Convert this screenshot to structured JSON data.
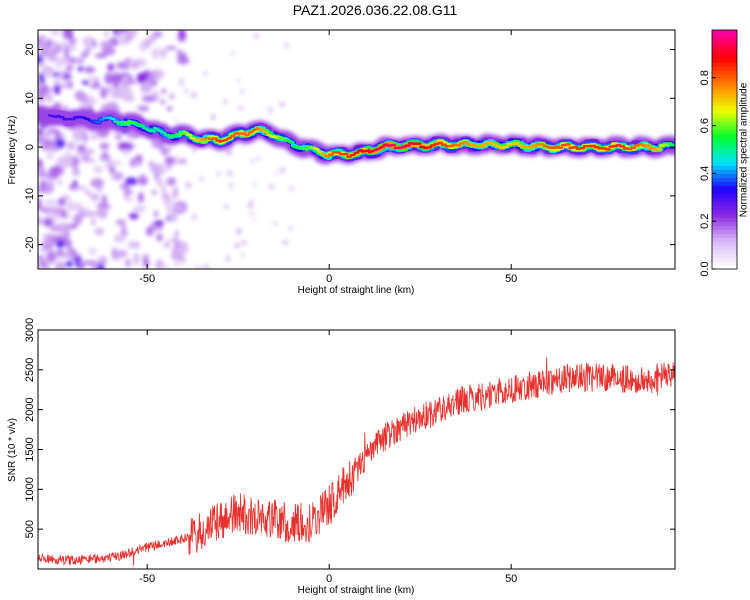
{
  "figure_title": "PAZ1.2026.036.22.08.G11",
  "colors": {
    "snr_line": "#e8302c",
    "frame": "#000000",
    "colormap": [
      "#ffffff",
      "#d9b8f5",
      "#8b2be2",
      "#2000ff",
      "#00e5ff",
      "#00ff30",
      "#f0ff00",
      "#ff8000",
      "#ff0000",
      "#ff00a0"
    ]
  },
  "chart_data": [
    {
      "type": "heatmap",
      "xlabel": "Height of straight line (km)",
      "ylabel": "Frequency (Hz)",
      "xlim": [
        -80,
        95
      ],
      "ylim": [
        -25,
        24
      ],
      "xticks": [
        -50,
        0,
        50
      ],
      "yticks": [
        -20,
        -10,
        0,
        10,
        20
      ],
      "grid": false,
      "colorbar": {
        "label": "Normalized spectral amplitude",
        "range": [
          0,
          1
        ],
        "ticks": [
          "0.0",
          "0.2",
          "0.4",
          "0.6",
          "0.8"
        ]
      },
      "ridge": {
        "x": [
          -80,
          -75,
          -70,
          -65,
          -60,
          -55,
          -50,
          -45,
          -40,
          -35,
          -30,
          -25,
          -20,
          -15,
          -10,
          -5,
          0,
          5,
          10,
          15,
          20,
          30,
          40,
          50,
          60,
          70,
          80,
          90,
          95
        ],
        "freq": [
          7,
          6,
          6,
          5.5,
          5.5,
          5,
          4,
          2.5,
          2.5,
          1.5,
          1.5,
          2.5,
          3.5,
          2.5,
          0.5,
          -0.5,
          -1.5,
          -1.5,
          -1,
          0,
          0.2,
          0.5,
          0.5,
          0.5,
          0,
          0,
          0,
          0,
          0.2
        ],
        "amplitude": [
          0.25,
          0.3,
          0.3,
          0.35,
          0.45,
          0.6,
          0.5,
          0.5,
          0.6,
          0.75,
          0.85,
          0.8,
          0.8,
          0.65,
          0.55,
          0.6,
          0.8,
          0.85,
          0.9,
          0.95,
          0.95,
          0.85,
          0.75,
          0.7,
          0.8,
          0.85,
          0.85,
          0.75,
          0.5
        ]
      }
    },
    {
      "type": "line",
      "xlabel": "Height of straight line (km)",
      "ylabel": "SNR (10 * v/v)",
      "xlim": [
        -80,
        95
      ],
      "ylim": [
        0,
        3000
      ],
      "xticks": [
        -50,
        0,
        50
      ],
      "yticks": [
        500,
        1000,
        1500,
        2000,
        2500,
        3000
      ],
      "grid": false,
      "series": [
        {
          "x": [
            -80,
            -75,
            -70,
            -65,
            -60,
            -55,
            -50,
            -45,
            -40,
            -35,
            -30,
            -25,
            -20,
            -15,
            -10,
            -5,
            0,
            5,
            10,
            15,
            20,
            25,
            30,
            35,
            40,
            45,
            50,
            55,
            60,
            65,
            70,
            75,
            80,
            85,
            90,
            95
          ],
          "values": [
            130,
            120,
            110,
            130,
            140,
            200,
            280,
            320,
            380,
            450,
            600,
            700,
            650,
            620,
            550,
            600,
            800,
            1100,
            1400,
            1650,
            1800,
            1900,
            2000,
            2100,
            2150,
            2200,
            2250,
            2300,
            2350,
            2400,
            2400,
            2400,
            2400,
            2350,
            2400,
            2450
          ]
        }
      ]
    }
  ]
}
